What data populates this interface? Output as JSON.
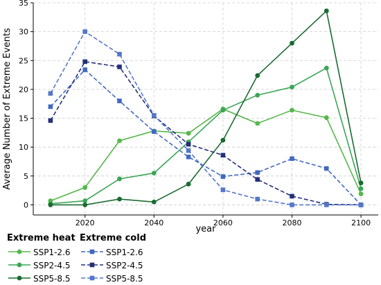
{
  "chart_data": {
    "type": "line",
    "title": "",
    "xlabel": "year",
    "ylabel": "Average Number of Extreme Events",
    "xlim": [
      2005,
      2105
    ],
    "ylim": [
      -1.75,
      35
    ],
    "xticks": [
      2020,
      2040,
      2060,
      2080,
      2100
    ],
    "yticks": [
      0,
      5,
      10,
      15,
      20,
      25,
      30,
      35
    ],
    "grid": true,
    "x": [
      2010,
      2020,
      2030,
      2040,
      2050,
      2060,
      2070,
      2080,
      2090,
      2100
    ],
    "legend_groups": [
      {
        "title": "Extreme heat",
        "series": [
          {
            "name": "SSP1-2.6",
            "color": "#55b84a",
            "linestyle": "solid",
            "marker": "circle",
            "values": [
              0.7,
              3.0,
              11.1,
              12.8,
              12.4,
              16.6,
              14.1,
              16.4,
              15.1,
              1.9
            ]
          },
          {
            "name": "SSP2-4.5",
            "color": "#3aa655",
            "linestyle": "solid",
            "marker": "circle",
            "values": [
              0.2,
              0.7,
              4.5,
              5.5,
              10.9,
              16.4,
              19.0,
              20.4,
              23.7,
              2.8
            ]
          },
          {
            "name": "SSP5-8.5",
            "color": "#1a6b30",
            "linestyle": "solid",
            "marker": "circle",
            "values": [
              0.0,
              0.0,
              1.0,
              0.5,
              3.6,
              11.2,
              22.4,
              28.0,
              33.6,
              3.8
            ]
          }
        ]
      },
      {
        "title": "Extreme cold",
        "series": [
          {
            "name": "SSP1-2.6",
            "color": "#4169c0",
            "linestyle": "dashed",
            "marker": "square",
            "values": [
              17.0,
              23.4,
              18.0,
              12.7,
              8.3,
              4.9,
              5.6,
              8.0,
              6.3,
              0.0
            ]
          },
          {
            "name": "SSP2-4.5",
            "color": "#23307a",
            "linestyle": "dashed",
            "marker": "square",
            "values": [
              14.6,
              24.8,
              23.9,
              15.4,
              10.5,
              8.6,
              4.4,
              1.5,
              0.1,
              0.0
            ]
          },
          {
            "name": "SSP5-8.5",
            "color": "#5477c9",
            "linestyle": "dashed",
            "marker": "square",
            "values": [
              19.3,
              30.0,
              26.1,
              15.5,
              9.4,
              2.6,
              1.0,
              0.0,
              0.0,
              0.0
            ]
          }
        ]
      }
    ]
  }
}
